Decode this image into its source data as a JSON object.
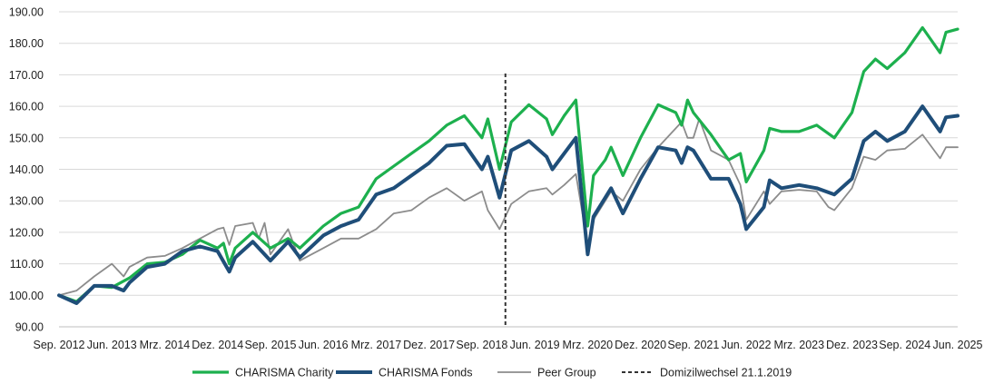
{
  "chart_data": {
    "type": "line",
    "ylim": [
      90,
      190
    ],
    "y_ticks": [
      "90.00",
      "100.00",
      "110.00",
      "120.00",
      "130.00",
      "140.00",
      "150.00",
      "160.00",
      "170.00",
      "180.00",
      "190.00"
    ],
    "x_ticks": [
      "Sep. 2012",
      "Jun. 2013",
      "Mrz. 2014",
      "Dez. 2014",
      "Sep. 2015",
      "Jun. 2016",
      "Mrz. 2017",
      "Dez. 2017",
      "Sep. 2018",
      "Jun. 2019",
      "Mrz. 2020",
      "Dez. 2020",
      "Sep. 2021",
      "Jun. 2022",
      "Mrz. 2023",
      "Dez. 2023",
      "Sep. 2024",
      "Jun. 2025"
    ],
    "x_start": "Sep. 2012",
    "grid": "horizontal",
    "legend_position": "bottom",
    "marker": {
      "label": "Domizilwechsel 21.1.2019",
      "x": "Jan. 2019"
    },
    "series": [
      {
        "name": "CHARISMA Charity",
        "color": "#1db04e",
        "style": "solid",
        "points": [
          {
            "x": "Sep. 2012",
            "y": 100.0
          },
          {
            "x": "Dez. 2012",
            "y": 98.0
          },
          {
            "x": "Mrz. 2013",
            "y": 103.0
          },
          {
            "x": "Jun. 2013",
            "y": 102.5
          },
          {
            "x": "Sep. 2013",
            "y": 105.5
          },
          {
            "x": "Dez. 2013",
            "y": 110.0
          },
          {
            "x": "Mrz. 2014",
            "y": 110.5
          },
          {
            "x": "Jun. 2014",
            "y": 113.0
          },
          {
            "x": "Sep. 2014",
            "y": 117.5
          },
          {
            "x": "Dez. 2014",
            "y": 115.0
          },
          {
            "x": "Jan. 2015",
            "y": 116.5
          },
          {
            "x": "Feb. 2015",
            "y": 110.0
          },
          {
            "x": "Mrz. 2015",
            "y": 115.0
          },
          {
            "x": "Jun. 2015",
            "y": 120.0
          },
          {
            "x": "Sep. 2015",
            "y": 115.0
          },
          {
            "x": "Dez. 2015",
            "y": 118.0
          },
          {
            "x": "Feb. 2016",
            "y": 115.0
          },
          {
            "x": "Jun. 2016",
            "y": 122.0
          },
          {
            "x": "Sep. 2016",
            "y": 126.0
          },
          {
            "x": "Dez. 2016",
            "y": 128.0
          },
          {
            "x": "Mrz. 2017",
            "y": 137.0
          },
          {
            "x": "Jun. 2017",
            "y": 141.0
          },
          {
            "x": "Sep. 2017",
            "y": 145.0
          },
          {
            "x": "Dez. 2017",
            "y": 149.0
          },
          {
            "x": "Mrz. 2018",
            "y": 154.0
          },
          {
            "x": "Jun. 2018",
            "y": 157.0
          },
          {
            "x": "Sep. 2018",
            "y": 150.0
          },
          {
            "x": "Okt. 2018",
            "y": 156.0
          },
          {
            "x": "Dez. 2018",
            "y": 140.0
          },
          {
            "x": "Feb. 2019",
            "y": 155.0
          },
          {
            "x": "Mai. 2019",
            "y": 160.5
          },
          {
            "x": "Aug. 2019",
            "y": 156.0
          },
          {
            "x": "Sep. 2019",
            "y": 151.0
          },
          {
            "x": "Nov. 2019",
            "y": 157.0
          },
          {
            "x": "Jan. 2020",
            "y": 162.0
          },
          {
            "x": "Mrz. 2020",
            "y": 122.0
          },
          {
            "x": "Apr. 2020",
            "y": 138.0
          },
          {
            "x": "Jun. 2020",
            "y": 143.0
          },
          {
            "x": "Jul. 2020",
            "y": 147.0
          },
          {
            "x": "Sep. 2020",
            "y": 138.0
          },
          {
            "x": "Dez. 2020",
            "y": 150.0
          },
          {
            "x": "Mrz. 2021",
            "y": 160.5
          },
          {
            "x": "Jun. 2021",
            "y": 158.0
          },
          {
            "x": "Jul. 2021",
            "y": 154.0
          },
          {
            "x": "Aug. 2021",
            "y": 162.0
          },
          {
            "x": "Sep. 2021",
            "y": 158.0
          },
          {
            "x": "Dez. 2021",
            "y": 151.0
          },
          {
            "x": "Mrz. 2022",
            "y": 143.0
          },
          {
            "x": "Mai. 2022",
            "y": 145.0
          },
          {
            "x": "Jun. 2022",
            "y": 136.0
          },
          {
            "x": "Sep. 2022",
            "y": 146.0
          },
          {
            "x": "Okt. 2022",
            "y": 153.0
          },
          {
            "x": "Dez. 2022",
            "y": 152.0
          },
          {
            "x": "Mrz. 2023",
            "y": 152.0
          },
          {
            "x": "Jun. 2023",
            "y": 154.0
          },
          {
            "x": "Sep. 2023",
            "y": 150.0
          },
          {
            "x": "Dez. 2023",
            "y": 158.0
          },
          {
            "x": "Feb. 2024",
            "y": 171.0
          },
          {
            "x": "Apr. 2024",
            "y": 175.0
          },
          {
            "x": "Jun. 2024",
            "y": 172.0
          },
          {
            "x": "Sep. 2024",
            "y": 177.0
          },
          {
            "x": "Dez. 2024",
            "y": 185.0
          },
          {
            "x": "Mrz. 2025",
            "y": 177.0
          },
          {
            "x": "Apr. 2025",
            "y": 183.5
          },
          {
            "x": "Jun. 2025",
            "y": 184.5
          }
        ]
      },
      {
        "name": "CHARISMA Fonds",
        "color": "#1f4e79",
        "style": "thick",
        "points": [
          {
            "x": "Sep. 2012",
            "y": 100.0
          },
          {
            "x": "Dez. 2012",
            "y": 97.5
          },
          {
            "x": "Mrz. 2013",
            "y": 103.0
          },
          {
            "x": "Jun. 2013",
            "y": 103.0
          },
          {
            "x": "Aug. 2013",
            "y": 101.5
          },
          {
            "x": "Sep. 2013",
            "y": 104.0
          },
          {
            "x": "Dez. 2013",
            "y": 109.0
          },
          {
            "x": "Mrz. 2014",
            "y": 110.0
          },
          {
            "x": "Jun. 2014",
            "y": 114.0
          },
          {
            "x": "Sep. 2014",
            "y": 115.5
          },
          {
            "x": "Dez. 2014",
            "y": 114.0
          },
          {
            "x": "Feb. 2015",
            "y": 107.5
          },
          {
            "x": "Mrz. 2015",
            "y": 112.0
          },
          {
            "x": "Jun. 2015",
            "y": 117.0
          },
          {
            "x": "Sep. 2015",
            "y": 111.0
          },
          {
            "x": "Dez. 2015",
            "y": 117.0
          },
          {
            "x": "Feb. 2016",
            "y": 112.0
          },
          {
            "x": "Jun. 2016",
            "y": 119.0
          },
          {
            "x": "Sep. 2016",
            "y": 122.0
          },
          {
            "x": "Dez. 2016",
            "y": 124.0
          },
          {
            "x": "Mrz. 2017",
            "y": 132.0
          },
          {
            "x": "Jun. 2017",
            "y": 134.0
          },
          {
            "x": "Sep. 2017",
            "y": 138.0
          },
          {
            "x": "Dez. 2017",
            "y": 142.0
          },
          {
            "x": "Mrz. 2018",
            "y": 147.5
          },
          {
            "x": "Jun. 2018",
            "y": 148.0
          },
          {
            "x": "Sep. 2018",
            "y": 140.0
          },
          {
            "x": "Okt. 2018",
            "y": 144.0
          },
          {
            "x": "Dez. 2018",
            "y": 131.0
          },
          {
            "x": "Feb. 2019",
            "y": 146.0
          },
          {
            "x": "Mai. 2019",
            "y": 149.0
          },
          {
            "x": "Aug. 2019",
            "y": 144.0
          },
          {
            "x": "Sep. 2019",
            "y": 140.0
          },
          {
            "x": "Nov. 2019",
            "y": 145.0
          },
          {
            "x": "Jan. 2020",
            "y": 150.0
          },
          {
            "x": "Mrz. 2020",
            "y": 113.0
          },
          {
            "x": "Apr. 2020",
            "y": 125.0
          },
          {
            "x": "Jun. 2020",
            "y": 131.0
          },
          {
            "x": "Jul. 2020",
            "y": 134.0
          },
          {
            "x": "Sep. 2020",
            "y": 126.0
          },
          {
            "x": "Dez. 2020",
            "y": 137.0
          },
          {
            "x": "Mrz. 2021",
            "y": 147.0
          },
          {
            "x": "Jun. 2021",
            "y": 146.0
          },
          {
            "x": "Jul. 2021",
            "y": 142.0
          },
          {
            "x": "Aug. 2021",
            "y": 147.0
          },
          {
            "x": "Sep. 2021",
            "y": 146.0
          },
          {
            "x": "Dez. 2021",
            "y": 137.0
          },
          {
            "x": "Mrz. 2022",
            "y": 137.0
          },
          {
            "x": "Mai. 2022",
            "y": 129.0
          },
          {
            "x": "Jun. 2022",
            "y": 121.0
          },
          {
            "x": "Sep. 2022",
            "y": 128.0
          },
          {
            "x": "Okt. 2022",
            "y": 136.5
          },
          {
            "x": "Dez. 2022",
            "y": 134.0
          },
          {
            "x": "Mrz. 2023",
            "y": 135.0
          },
          {
            "x": "Jun. 2023",
            "y": 134.0
          },
          {
            "x": "Sep. 2023",
            "y": 132.0
          },
          {
            "x": "Dez. 2023",
            "y": 137.0
          },
          {
            "x": "Feb. 2024",
            "y": 149.0
          },
          {
            "x": "Apr. 2024",
            "y": 152.0
          },
          {
            "x": "Jun. 2024",
            "y": 149.0
          },
          {
            "x": "Sep. 2024",
            "y": 152.0
          },
          {
            "x": "Dez. 2024",
            "y": 160.0
          },
          {
            "x": "Mrz. 2025",
            "y": 152.0
          },
          {
            "x": "Apr. 2025",
            "y": 156.5
          },
          {
            "x": "Jun. 2025",
            "y": 157.0
          }
        ]
      },
      {
        "name": "Peer Group",
        "color": "#8c8c8c",
        "style": "thin",
        "points": [
          {
            "x": "Sep. 2012",
            "y": 100.0
          },
          {
            "x": "Dez. 2012",
            "y": 101.5
          },
          {
            "x": "Mrz. 2013",
            "y": 106.0
          },
          {
            "x": "Jun. 2013",
            "y": 110.0
          },
          {
            "x": "Aug. 2013",
            "y": 106.0
          },
          {
            "x": "Sep. 2013",
            "y": 109.0
          },
          {
            "x": "Dez. 2013",
            "y": 112.0
          },
          {
            "x": "Mrz. 2014",
            "y": 112.5
          },
          {
            "x": "Jun. 2014",
            "y": 115.0
          },
          {
            "x": "Sep. 2014",
            "y": 118.0
          },
          {
            "x": "Dez. 2014",
            "y": 121.0
          },
          {
            "x": "Jan. 2015",
            "y": 121.5
          },
          {
            "x": "Feb. 2015",
            "y": 116.0
          },
          {
            "x": "Mrz. 2015",
            "y": 122.0
          },
          {
            "x": "Jun. 2015",
            "y": 123.0
          },
          {
            "x": "Jul. 2015",
            "y": 118.0
          },
          {
            "x": "Aug. 2015",
            "y": 123.0
          },
          {
            "x": "Sep. 2015",
            "y": 113.0
          },
          {
            "x": "Dez. 2015",
            "y": 121.0
          },
          {
            "x": "Feb. 2016",
            "y": 111.0
          },
          {
            "x": "Jun. 2016",
            "y": 115.0
          },
          {
            "x": "Sep. 2016",
            "y": 118.0
          },
          {
            "x": "Dez. 2016",
            "y": 118.0
          },
          {
            "x": "Mrz. 2017",
            "y": 121.0
          },
          {
            "x": "Jun. 2017",
            "y": 126.0
          },
          {
            "x": "Sep. 2017",
            "y": 127.0
          },
          {
            "x": "Dez. 2017",
            "y": 131.0
          },
          {
            "x": "Mrz. 2018",
            "y": 134.0
          },
          {
            "x": "Jun. 2018",
            "y": 130.0
          },
          {
            "x": "Sep. 2018",
            "y": 133.0
          },
          {
            "x": "Okt. 2018",
            "y": 127.0
          },
          {
            "x": "Dez. 2018",
            "y": 121.0
          },
          {
            "x": "Feb. 2019",
            "y": 129.0
          },
          {
            "x": "Mai. 2019",
            "y": 133.0
          },
          {
            "x": "Aug. 2019",
            "y": 134.0
          },
          {
            "x": "Sep. 2019",
            "y": 132.0
          },
          {
            "x": "Nov. 2019",
            "y": 135.0
          },
          {
            "x": "Jan. 2020",
            "y": 138.5
          },
          {
            "x": "Mrz. 2020",
            "y": 116.0
          },
          {
            "x": "Apr. 2020",
            "y": 124.0
          },
          {
            "x": "Jun. 2020",
            "y": 130.0
          },
          {
            "x": "Jul. 2020",
            "y": 133.0
          },
          {
            "x": "Sep. 2020",
            "y": 130.0
          },
          {
            "x": "Dez. 2020",
            "y": 140.0
          },
          {
            "x": "Mrz. 2021",
            "y": 147.0
          },
          {
            "x": "Jun. 2021",
            "y": 153.0
          },
          {
            "x": "Jul. 2021",
            "y": 155.0
          },
          {
            "x": "Aug. 2021",
            "y": 150.0
          },
          {
            "x": "Sep. 2021",
            "y": 150.0
          },
          {
            "x": "Okt. 2021",
            "y": 156.0
          },
          {
            "x": "Dez. 2021",
            "y": 146.0
          },
          {
            "x": "Mrz. 2022",
            "y": 143.0
          },
          {
            "x": "Mai. 2022",
            "y": 135.0
          },
          {
            "x": "Jun. 2022",
            "y": 124.0
          },
          {
            "x": "Sep. 2022",
            "y": 133.0
          },
          {
            "x": "Okt. 2022",
            "y": 129.0
          },
          {
            "x": "Dez. 2022",
            "y": 133.0
          },
          {
            "x": "Mrz. 2023",
            "y": 133.5
          },
          {
            "x": "Jun. 2023",
            "y": 133.0
          },
          {
            "x": "Aug. 2023",
            "y": 128.0
          },
          {
            "x": "Sep. 2023",
            "y": 127.0
          },
          {
            "x": "Dez. 2023",
            "y": 134.0
          },
          {
            "x": "Feb. 2024",
            "y": 144.0
          },
          {
            "x": "Apr. 2024",
            "y": 143.0
          },
          {
            "x": "Jun. 2024",
            "y": 146.0
          },
          {
            "x": "Sep. 2024",
            "y": 146.5
          },
          {
            "x": "Dez. 2024",
            "y": 151.0
          },
          {
            "x": "Mrz. 2025",
            "y": 143.5
          },
          {
            "x": "Apr. 2025",
            "y": 147.0
          },
          {
            "x": "Jun. 2025",
            "y": 147.0
          }
        ]
      }
    ]
  }
}
